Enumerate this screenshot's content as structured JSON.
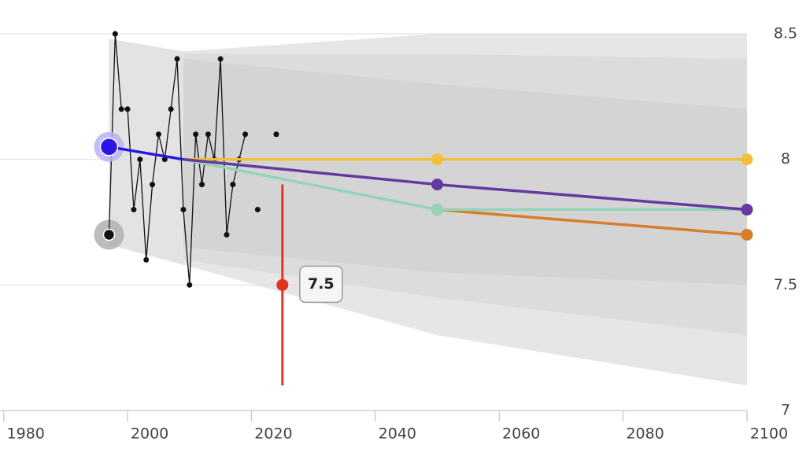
{
  "chart_data": {
    "type": "line",
    "xlim": [
      1979.4,
      2100
    ],
    "ylim": [
      7,
      8.5
    ],
    "xticks": [
      1980,
      2000,
      2020,
      2040,
      2060,
      2080,
      2100
    ],
    "yticks": [
      7,
      7.5,
      8,
      8.5
    ],
    "grid": true,
    "bands": [
      {
        "color": "#e3e3e3",
        "x": [
          1997,
          2009
        ],
        "upper": [
          8.48,
          8.43
        ],
        "lower": [
          7.66,
          7.58
        ]
      },
      {
        "color": "#e6e6e6",
        "x": [
          2009,
          2050,
          2100
        ],
        "upper": [
          8.43,
          8.5,
          8.5
        ],
        "lower": [
          7.58,
          7.3,
          7.1
        ]
      },
      {
        "color": "#dcdcdc",
        "x": [
          2009,
          2050,
          2100
        ],
        "upper": [
          8.42,
          8.42,
          8.4
        ],
        "lower": [
          7.6,
          7.45,
          7.3
        ]
      },
      {
        "color": "#d4d4d4",
        "x": [
          2009,
          2050,
          2100
        ],
        "upper": [
          8.4,
          8.3,
          8.2
        ],
        "lower": [
          7.65,
          7.55,
          7.5
        ]
      }
    ],
    "series": [
      {
        "color": "#111111",
        "marker": "dot",
        "start_marker": "halo",
        "halo_color": "#b0b0b0",
        "x": [
          1997,
          1998,
          1999,
          2000,
          2001,
          2002,
          2003,
          2004,
          2005,
          2006,
          2007,
          2008,
          2009,
          2010,
          2011,
          2012,
          2013,
          2014,
          2015,
          2016,
          2017,
          2018,
          2019
        ],
        "values": [
          7.7,
          8.5,
          8.2,
          8.2,
          7.8,
          8.0,
          7.6,
          7.9,
          8.1,
          8.0,
          8.2,
          8.4,
          7.8,
          7.5,
          8.1,
          7.9,
          8.1,
          8.0,
          8.4,
          7.7,
          7.9,
          8.0,
          8.1
        ]
      },
      {
        "color": "#111111",
        "marker": "dot",
        "line": false,
        "x": [
          2021,
          2024
        ],
        "values": [
          7.8,
          8.1
        ]
      },
      {
        "color": "#2a14e6",
        "marker": "none",
        "start_marker": "halo",
        "halo_color": "#b9b4f5",
        "x": [
          1997,
          2009
        ],
        "values": [
          8.05,
          8.0
        ]
      },
      {
        "color": "#f0bf3c",
        "marker": "end",
        "x": [
          2009,
          2050,
          2100
        ],
        "values": [
          8.0,
          8.0,
          8.0
        ]
      },
      {
        "color": "#d87d2a",
        "marker": "end",
        "x": [
          2050,
          2100
        ],
        "values": [
          7.8,
          7.7
        ]
      },
      {
        "color": "#93d3b9",
        "marker": "end",
        "x": [
          2009,
          2050,
          2100
        ],
        "values": [
          8.0,
          7.8,
          7.8
        ]
      },
      {
        "color": "#643aa0",
        "marker": "end",
        "x": [
          2009,
          2050,
          2100
        ],
        "values": [
          8.0,
          7.9,
          7.8
        ]
      }
    ],
    "estimate": {
      "x": 2025,
      "value": 7.5,
      "error": 0.4,
      "color": "#e0341c"
    }
  }
}
